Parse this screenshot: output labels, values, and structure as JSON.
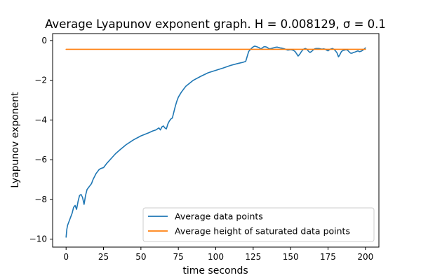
{
  "chart_data": {
    "type": "line",
    "title": "Average Lyapunov exponent graph. H = 0.008129, σ = 0.1",
    "xlabel": "time seconds",
    "ylabel": "Lyapunov exponent",
    "xlim": [
      -9,
      209
    ],
    "ylim": [
      -10.4,
      0.35
    ],
    "xticks": [
      0,
      25,
      50,
      75,
      100,
      125,
      150,
      175,
      200
    ],
    "xtick_labels": [
      "0",
      "25",
      "50",
      "75",
      "100",
      "125",
      "150",
      "175",
      "200"
    ],
    "yticks": [
      0,
      -2,
      -4,
      -6,
      -8,
      -10
    ],
    "ytick_labels": [
      "0",
      "−2",
      "−4",
      "−6",
      "−8",
      "−10"
    ],
    "grid": false,
    "legend_position": "lower-right",
    "series": [
      {
        "name": "Average data points",
        "color": "#1f77b4",
        "x": [
          0,
          0.5,
          1,
          2,
          3,
          4,
          5,
          6,
          7,
          8,
          9,
          10,
          11,
          12,
          13,
          14,
          15,
          16,
          17,
          18,
          19,
          20,
          21,
          22,
          23,
          24,
          25,
          27,
          30,
          33,
          36,
          40,
          45,
          50,
          55,
          58,
          60,
          62,
          63,
          64,
          65,
          66,
          67,
          68,
          69,
          70,
          71,
          72,
          73,
          74,
          75,
          77,
          80,
          85,
          90,
          95,
          100,
          105,
          110,
          115,
          118,
          120,
          122,
          124,
          125,
          126,
          127,
          128,
          129,
          130,
          131,
          132,
          133,
          134,
          135,
          136,
          137,
          138,
          139,
          140,
          141,
          142,
          143,
          144,
          145,
          146,
          147,
          148,
          149,
          150,
          151,
          152,
          153,
          154,
          155,
          156,
          157,
          158,
          159,
          160,
          161,
          162,
          163,
          164,
          165,
          166,
          167,
          168,
          169,
          170,
          171,
          172,
          173,
          174,
          175,
          176,
          177,
          178,
          179,
          180,
          181,
          182,
          183,
          184,
          185,
          186,
          187,
          188,
          189,
          190,
          191,
          192,
          193,
          194,
          195,
          196,
          197,
          198,
          199,
          200
        ],
        "y": [
          -9.9,
          -9.5,
          -9.3,
          -9.1,
          -8.9,
          -8.7,
          -8.4,
          -8.3,
          -8.5,
          -8.1,
          -7.8,
          -7.75,
          -7.9,
          -8.25,
          -7.8,
          -7.5,
          -7.4,
          -7.3,
          -7.2,
          -7.0,
          -6.85,
          -6.7,
          -6.6,
          -6.5,
          -6.45,
          -6.42,
          -6.4,
          -6.2,
          -5.95,
          -5.7,
          -5.5,
          -5.25,
          -5.0,
          -4.8,
          -4.65,
          -4.55,
          -4.5,
          -4.4,
          -4.5,
          -4.35,
          -4.3,
          -4.4,
          -4.45,
          -4.2,
          -4.05,
          -3.95,
          -3.9,
          -3.6,
          -3.3,
          -3.05,
          -2.85,
          -2.6,
          -2.3,
          -2.0,
          -1.8,
          -1.62,
          -1.5,
          -1.38,
          -1.25,
          -1.15,
          -1.1,
          -1.05,
          -0.55,
          -0.38,
          -0.32,
          -0.28,
          -0.3,
          -0.33,
          -0.36,
          -0.42,
          -0.38,
          -0.32,
          -0.31,
          -0.33,
          -0.38,
          -0.42,
          -0.4,
          -0.38,
          -0.36,
          -0.34,
          -0.33,
          -0.35,
          -0.37,
          -0.38,
          -0.4,
          -0.42,
          -0.45,
          -0.48,
          -0.47,
          -0.46,
          -0.47,
          -0.5,
          -0.55,
          -0.66,
          -0.78,
          -0.7,
          -0.58,
          -0.48,
          -0.42,
          -0.4,
          -0.45,
          -0.54,
          -0.6,
          -0.55,
          -0.48,
          -0.42,
          -0.4,
          -0.4,
          -0.4,
          -0.42,
          -0.43,
          -0.42,
          -0.43,
          -0.48,
          -0.52,
          -0.46,
          -0.42,
          -0.4,
          -0.44,
          -0.52,
          -0.62,
          -0.82,
          -0.7,
          -0.55,
          -0.5,
          -0.48,
          -0.46,
          -0.48,
          -0.56,
          -0.63,
          -0.64,
          -0.6,
          -0.58,
          -0.55,
          -0.52,
          -0.56,
          -0.54,
          -0.5,
          -0.44,
          -0.37
        ]
      },
      {
        "name": "Average height of saturated data points",
        "color": "#ff7f0e",
        "x": [
          0,
          200
        ],
        "y": [
          -0.44,
          -0.44
        ]
      }
    ]
  }
}
